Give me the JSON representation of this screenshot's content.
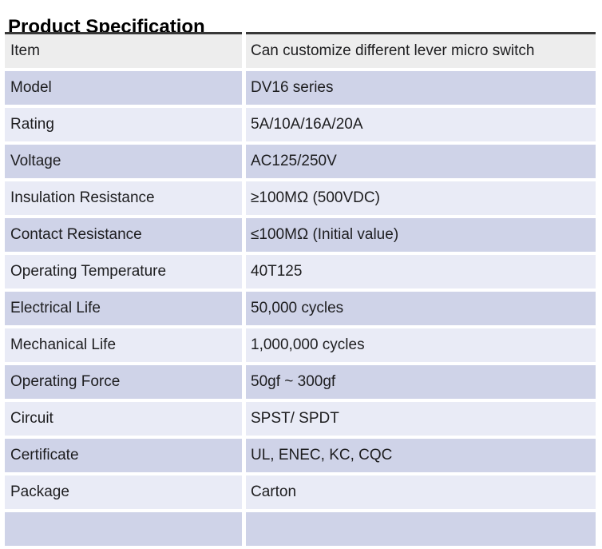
{
  "title": "Product Specification",
  "colors": {
    "page_bg": "#ffffff",
    "title": "#000000",
    "text": "#1d1d1f",
    "top_border": "#383838",
    "header_row_bg": "#ededed",
    "row_lavender_bg": "#cfd3e8",
    "row_light_bg": "#e9ebf6"
  },
  "table": {
    "rows": [
      {
        "label": "Item",
        "value": "Can customize different lever micro switch"
      },
      {
        "label": "Model",
        "value": "DV16 series"
      },
      {
        "label": "Rating",
        "value": "5A/10A/16A/20A"
      },
      {
        "label": "Voltage",
        "value": "AC125/250V"
      },
      {
        "label": "Insulation Resistance",
        "value": "≥100MΩ (500VDC)"
      },
      {
        "label": "Contact Resistance",
        "value": "≤100MΩ (Initial value)"
      },
      {
        "label": "Operating Temperature",
        "value": "40T125"
      },
      {
        "label": "Electrical Life",
        "value": "50,000 cycles"
      },
      {
        "label": "Mechanical Life",
        "value": "1,000,000 cycles"
      },
      {
        "label": "Operating Force",
        "value": "50gf ~ 300gf"
      },
      {
        "label": "Circuit",
        "value": "SPST/ SPDT"
      },
      {
        "label": "Certificate",
        "value": "UL, ENEC, KC, CQC"
      },
      {
        "label": "Package",
        "value": "Carton"
      }
    ]
  }
}
